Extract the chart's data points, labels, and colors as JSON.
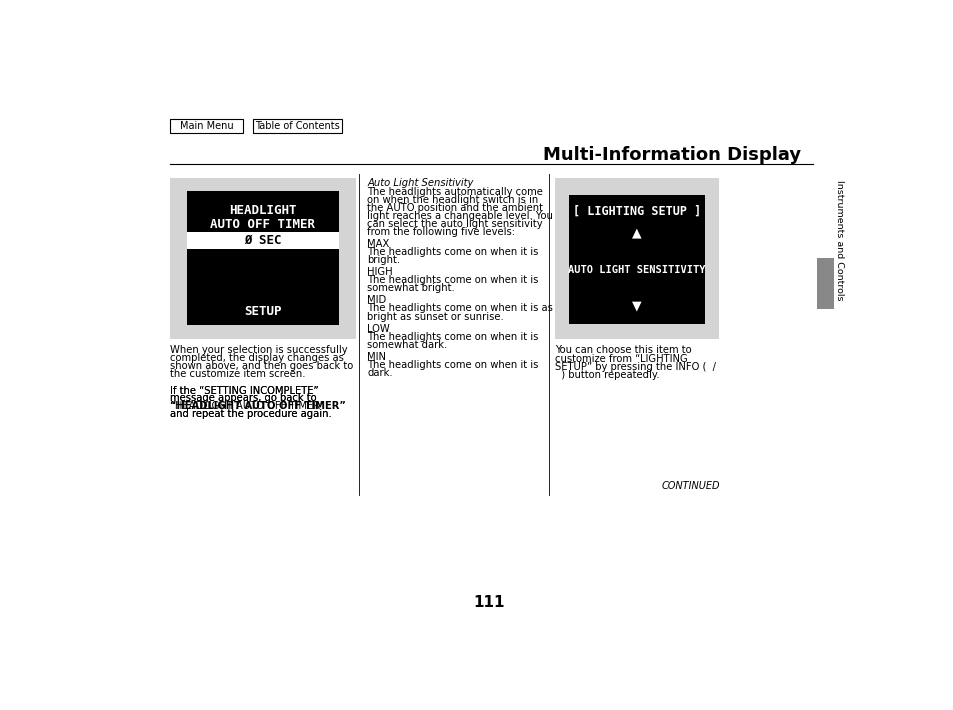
{
  "bg_color": "#ffffff",
  "title": "Multi-Information Display",
  "page_number": "111",
  "continued_text": "CONTINUED",
  "nav_buttons": [
    "Main Menu",
    "Table of Contents"
  ],
  "sidebar_text": "Instruments and Controls",
  "sidebar_rect_color": "#888888",
  "left_panel_bg": "#d4d4d4",
  "display_bg": "#000000",
  "display_text_color": "#ffffff",
  "display_highlight_bg": "#ffffff",
  "display_highlight_color": "#000000",
  "left_display_lines": [
    "HEADLIGHT",
    "AUTO OFF TIMER"
  ],
  "left_display_highlight": "Ø SEC",
  "left_display_bottom": "SETUP",
  "right_display_lines": [
    "[ LIGHTING SETUP ]",
    "▲",
    "AUTO LIGHT SENSITIVITY",
    "▼"
  ],
  "left_caption_paragraphs": [
    "When your selection is successfully\ncompleted, the display changes as\nshown above, and then goes back to\nthe customize item screen.",
    "If the “SETTING INCOMPLETE”\nmessage appears, go back to\n“HEADLIGHT AUTO OFF TIMER”\nand repeat the procedure again."
  ],
  "middle_title_italic": "Auto Light Sensitivity",
  "middle_paragraphs": [
    "The headlights automatically come\non when the headlight switch is in\nthe AUTO position and the ambient\nlight reaches a changeable level. You\ncan select the auto light sensitivity\nfrom the following five levels:",
    "MAX\nThe headlights come on when it is\nbright.",
    "HIGH\nThe headlights come on when it is\nsomewhat bright.",
    "MID\nThe headlights come on when it is as\nbright as sunset or sunrise.",
    "LOW\nThe headlights come on when it is\nsomewhat dark.",
    "MIN\nThe headlights come on when it is\ndark."
  ],
  "right_caption": "You can choose this item to\ncustomize from “LIGHTING\nSETUP” by pressing the INFO (  /\n  ) button repeatedly.",
  "font_size_title": 13,
  "font_size_body": 7.2,
  "font_size_page": 11,
  "font_size_display_large": 9,
  "font_size_display_small": 7.5
}
